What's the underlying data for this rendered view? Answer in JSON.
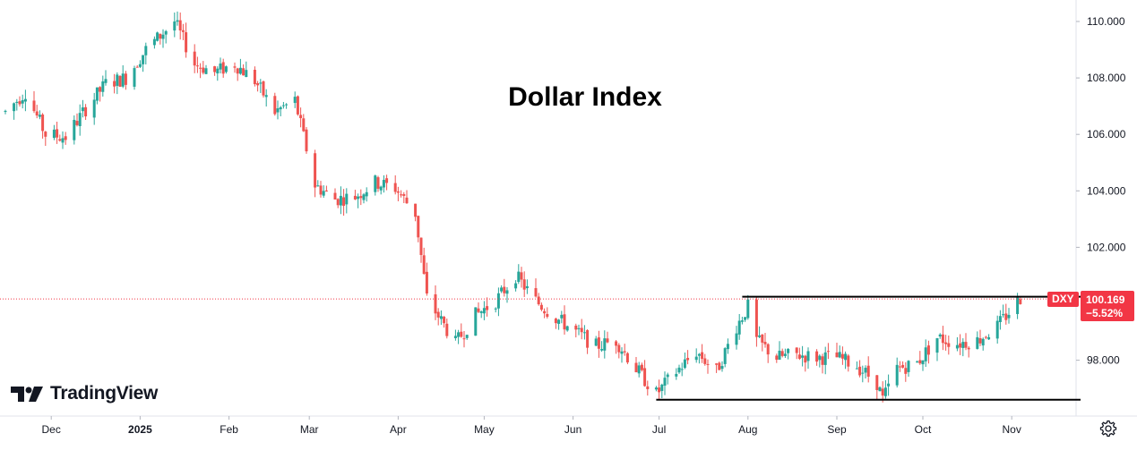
{
  "chart_data": {
    "type": "candlestick",
    "title": "Dollar Index",
    "symbol": "DXY",
    "last_price": "100.169",
    "change_pct": "−5.52%",
    "ylim": [
      96.0,
      110.5
    ],
    "y_ticks": [
      "110.000",
      "108.000",
      "106.000",
      "104.000",
      "102.000",
      "98.000"
    ],
    "y_tick_values": [
      110,
      108,
      106,
      104,
      102,
      98
    ],
    "x_ticks": [
      "Dec",
      "2025",
      "Feb",
      "Mar",
      "Apr",
      "May",
      "Jun",
      "Jul",
      "Aug",
      "Sep",
      "Oct",
      "Nov"
    ],
    "x_tick_dates": [
      "2024-12-01",
      "2025-01-01",
      "2025-02-01",
      "2025-03-01",
      "2025-04-01",
      "2025-05-01",
      "2025-06-01",
      "2025-07-01",
      "2025-08-01",
      "2025-09-01",
      "2025-10-01",
      "2025-11-01"
    ],
    "date_range": [
      "2024-11-15",
      "2025-11-04"
    ],
    "trend_path": [
      [
        "2024-11-15",
        106.8
      ],
      [
        "2024-11-22",
        107.5
      ],
      [
        "2024-11-29",
        106.0
      ],
      [
        "2024-12-06",
        105.9
      ],
      [
        "2024-12-13",
        106.9
      ],
      [
        "2024-12-20",
        107.8
      ],
      [
        "2024-12-27",
        108.0
      ],
      [
        "2025-01-03",
        109.0
      ],
      [
        "2025-01-10",
        109.7
      ],
      [
        "2025-01-13",
        110.0
      ],
      [
        "2025-01-20",
        108.5
      ],
      [
        "2025-01-27",
        108.2
      ],
      [
        "2025-02-03",
        108.5
      ],
      [
        "2025-02-10",
        107.9
      ],
      [
        "2025-02-17",
        106.8
      ],
      [
        "2025-02-24",
        107.2
      ],
      [
        "2025-03-03",
        104.2
      ],
      [
        "2025-03-10",
        103.7
      ],
      [
        "2025-03-17",
        103.8
      ],
      [
        "2025-03-24",
        104.3
      ],
      [
        "2025-03-31",
        104.1
      ],
      [
        "2025-04-07",
        103.2
      ],
      [
        "2025-04-11",
        100.2
      ],
      [
        "2025-04-21",
        98.6
      ],
      [
        "2025-04-28",
        99.6
      ],
      [
        "2025-05-05",
        100.1
      ],
      [
        "2025-05-12",
        101.0
      ],
      [
        "2025-05-19",
        100.1
      ],
      [
        "2025-05-26",
        99.5
      ],
      [
        "2025-06-02",
        99.0
      ],
      [
        "2025-06-09",
        98.5
      ],
      [
        "2025-06-16",
        98.7
      ],
      [
        "2025-06-23",
        97.7
      ],
      [
        "2025-06-30",
        96.8
      ],
      [
        "2025-07-07",
        97.6
      ],
      [
        "2025-07-14",
        98.3
      ],
      [
        "2025-07-21",
        97.6
      ],
      [
        "2025-07-28",
        99.2
      ],
      [
        "2025-08-01",
        99.9
      ],
      [
        "2025-08-04",
        98.7
      ],
      [
        "2025-08-11",
        98.1
      ],
      [
        "2025-08-18",
        98.2
      ],
      [
        "2025-08-25",
        98.1
      ],
      [
        "2025-09-01",
        98.1
      ],
      [
        "2025-09-08",
        97.8
      ],
      [
        "2025-09-15",
        97.2
      ],
      [
        "2025-09-17",
        96.6
      ],
      [
        "2025-09-22",
        97.7
      ],
      [
        "2025-09-29",
        97.9
      ],
      [
        "2025-10-06",
        98.8
      ],
      [
        "2025-10-13",
        98.6
      ],
      [
        "2025-10-20",
        98.7
      ],
      [
        "2025-10-27",
        99.2
      ],
      [
        "2025-11-04",
        100.2
      ]
    ],
    "horizontal_lines": [
      {
        "from": "2025-07-30",
        "to": "2025-11-25",
        "value": 100.25
      },
      {
        "from": "2025-06-30",
        "to": "2025-11-25",
        "value": 96.6
      }
    ],
    "up_color": "#26a69a",
    "down_color": "#ef5350",
    "price_line_color": "#f23645"
  },
  "branding": {
    "logo_text": "TradingView"
  },
  "icons": {
    "settings": "gear-icon"
  }
}
